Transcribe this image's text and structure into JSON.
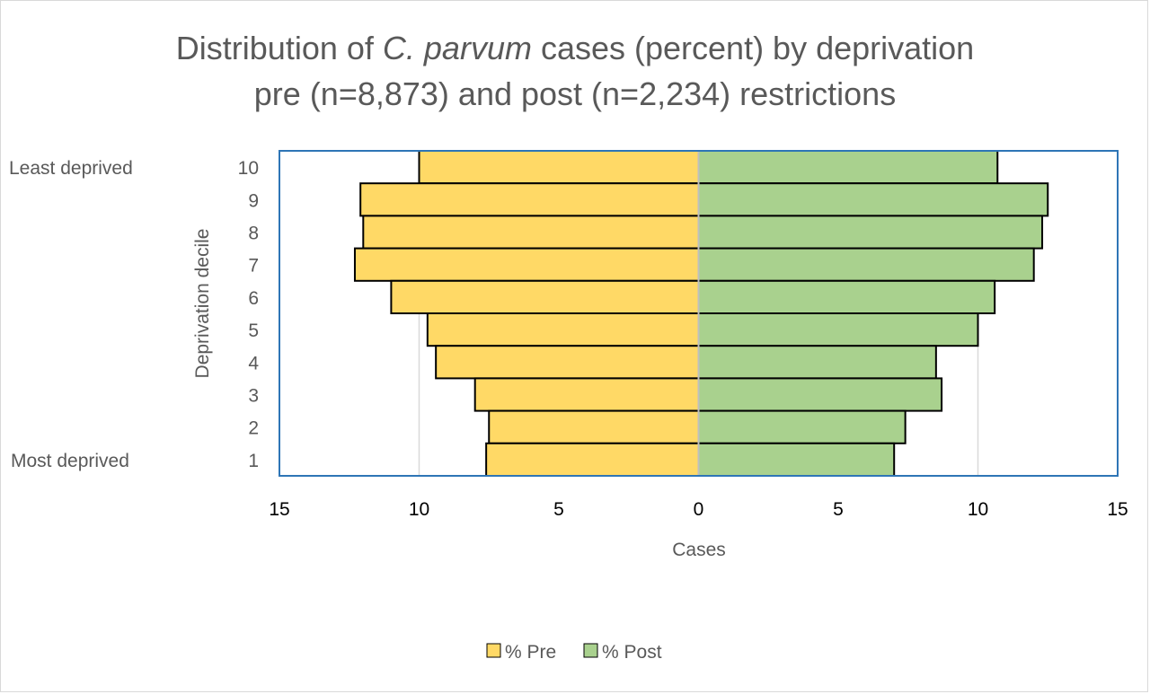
{
  "chart_data": {
    "type": "bar",
    "orientation": "horizontal",
    "title": {
      "part1": "Distribution of ",
      "italic": "C. parvum",
      "part2": " cases (percent) by deprivation",
      "line2": "pre (n=8,873) and post (n=2,234) restrictions"
    },
    "xlabel": "Cases",
    "ylabel": "Deprivation decile",
    "xlim": [
      -15,
      15
    ],
    "xticks": [
      {
        "value": -15,
        "label": "15"
      },
      {
        "value": -10,
        "label": "10"
      },
      {
        "value": -5,
        "label": "5"
      },
      {
        "value": 0,
        "label": "0"
      },
      {
        "value": 5,
        "label": "5"
      },
      {
        "value": 10,
        "label": "10"
      },
      {
        "value": 15,
        "label": "15"
      }
    ],
    "gridlines_at": [
      -10,
      10
    ],
    "categories": [
      "10",
      "9",
      "8",
      "7",
      "6",
      "5",
      "4",
      "3",
      "2",
      "1"
    ],
    "category_annotations": {
      "top": "Least deprived",
      "bottom": "Most deprived"
    },
    "series": [
      {
        "name": "% Pre",
        "color": "#FFD966",
        "direction": "left",
        "values": [
          10.0,
          12.1,
          12.0,
          12.3,
          11.0,
          9.7,
          9.4,
          8.0,
          7.5,
          7.6
        ]
      },
      {
        "name": "% Post",
        "color": "#A9D18E",
        "direction": "right",
        "values": [
          10.7,
          12.5,
          12.3,
          12.0,
          10.6,
          10.0,
          8.5,
          8.7,
          7.4,
          7.0
        ]
      }
    ],
    "legend_position": "bottom",
    "plot_border_color": "#2E75B6",
    "gridline_color": "#D9D9D9",
    "center_line_color": "#BFBFBF"
  }
}
